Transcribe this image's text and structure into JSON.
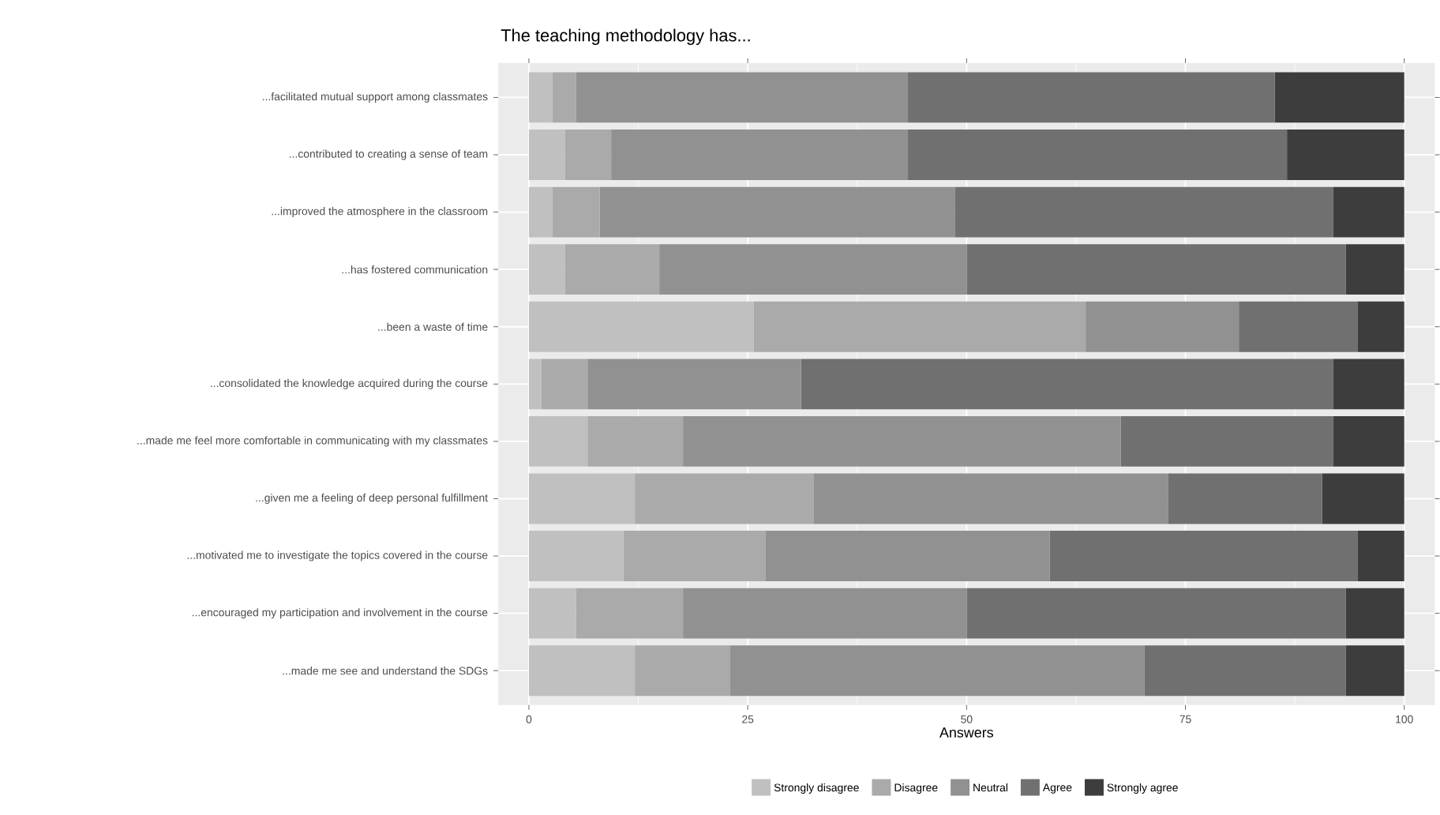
{
  "chart_data": {
    "type": "bar",
    "orientation": "horizontal",
    "stacked": true,
    "title": "The teaching methodology has...",
    "xlabel": "Answers",
    "categories": [
      "...facilitated mutual support among classmates",
      "...contributed to creating a sense of team",
      "...improved the atmosphere in the classroom",
      "...has fostered communication",
      "...been a waste of time",
      "...consolidated the knowledge acquired during the course",
      "...made me feel more comfortable in communicating with my classmates",
      "...given me a feeling of deep personal fulfillment",
      "...motivated me to investigate the topics covered in the course",
      "...encouraged my participation and involvement in the course",
      "...made me see and understand the SDGs"
    ],
    "series": [
      {
        "name": "Strongly disagree",
        "color": "#c0c0c0",
        "values": [
          2.7,
          4.1,
          2.7,
          4.1,
          25.7,
          1.4,
          6.7,
          12.1,
          10.8,
          5.4,
          12.1
        ]
      },
      {
        "name": "Disagree",
        "color": "#aaaaaa",
        "values": [
          2.7,
          5.3,
          5.4,
          10.8,
          37.9,
          5.3,
          10.9,
          20.4,
          16.2,
          12.2,
          10.9
        ]
      },
      {
        "name": "Neutral",
        "color": "#919191",
        "values": [
          37.9,
          33.9,
          40.6,
          35.1,
          17.5,
          24.4,
          50.0,
          40.5,
          32.5,
          32.4,
          47.3
        ]
      },
      {
        "name": "Agree",
        "color": "#707070",
        "values": [
          41.9,
          43.3,
          43.2,
          43.3,
          13.6,
          60.8,
          24.3,
          17.6,
          35.2,
          43.3,
          23.0
        ]
      },
      {
        "name": "Strongly agree",
        "color": "#3d3d3d",
        "values": [
          14.8,
          13.4,
          8.1,
          6.7,
          5.3,
          8.1,
          8.1,
          9.4,
          5.3,
          6.7,
          6.7
        ]
      }
    ],
    "xlim": [
      -3.5,
      103.5
    ],
    "xticks": [
      0,
      25,
      50,
      75,
      100
    ],
    "grid": true,
    "legend": "bottom"
  }
}
